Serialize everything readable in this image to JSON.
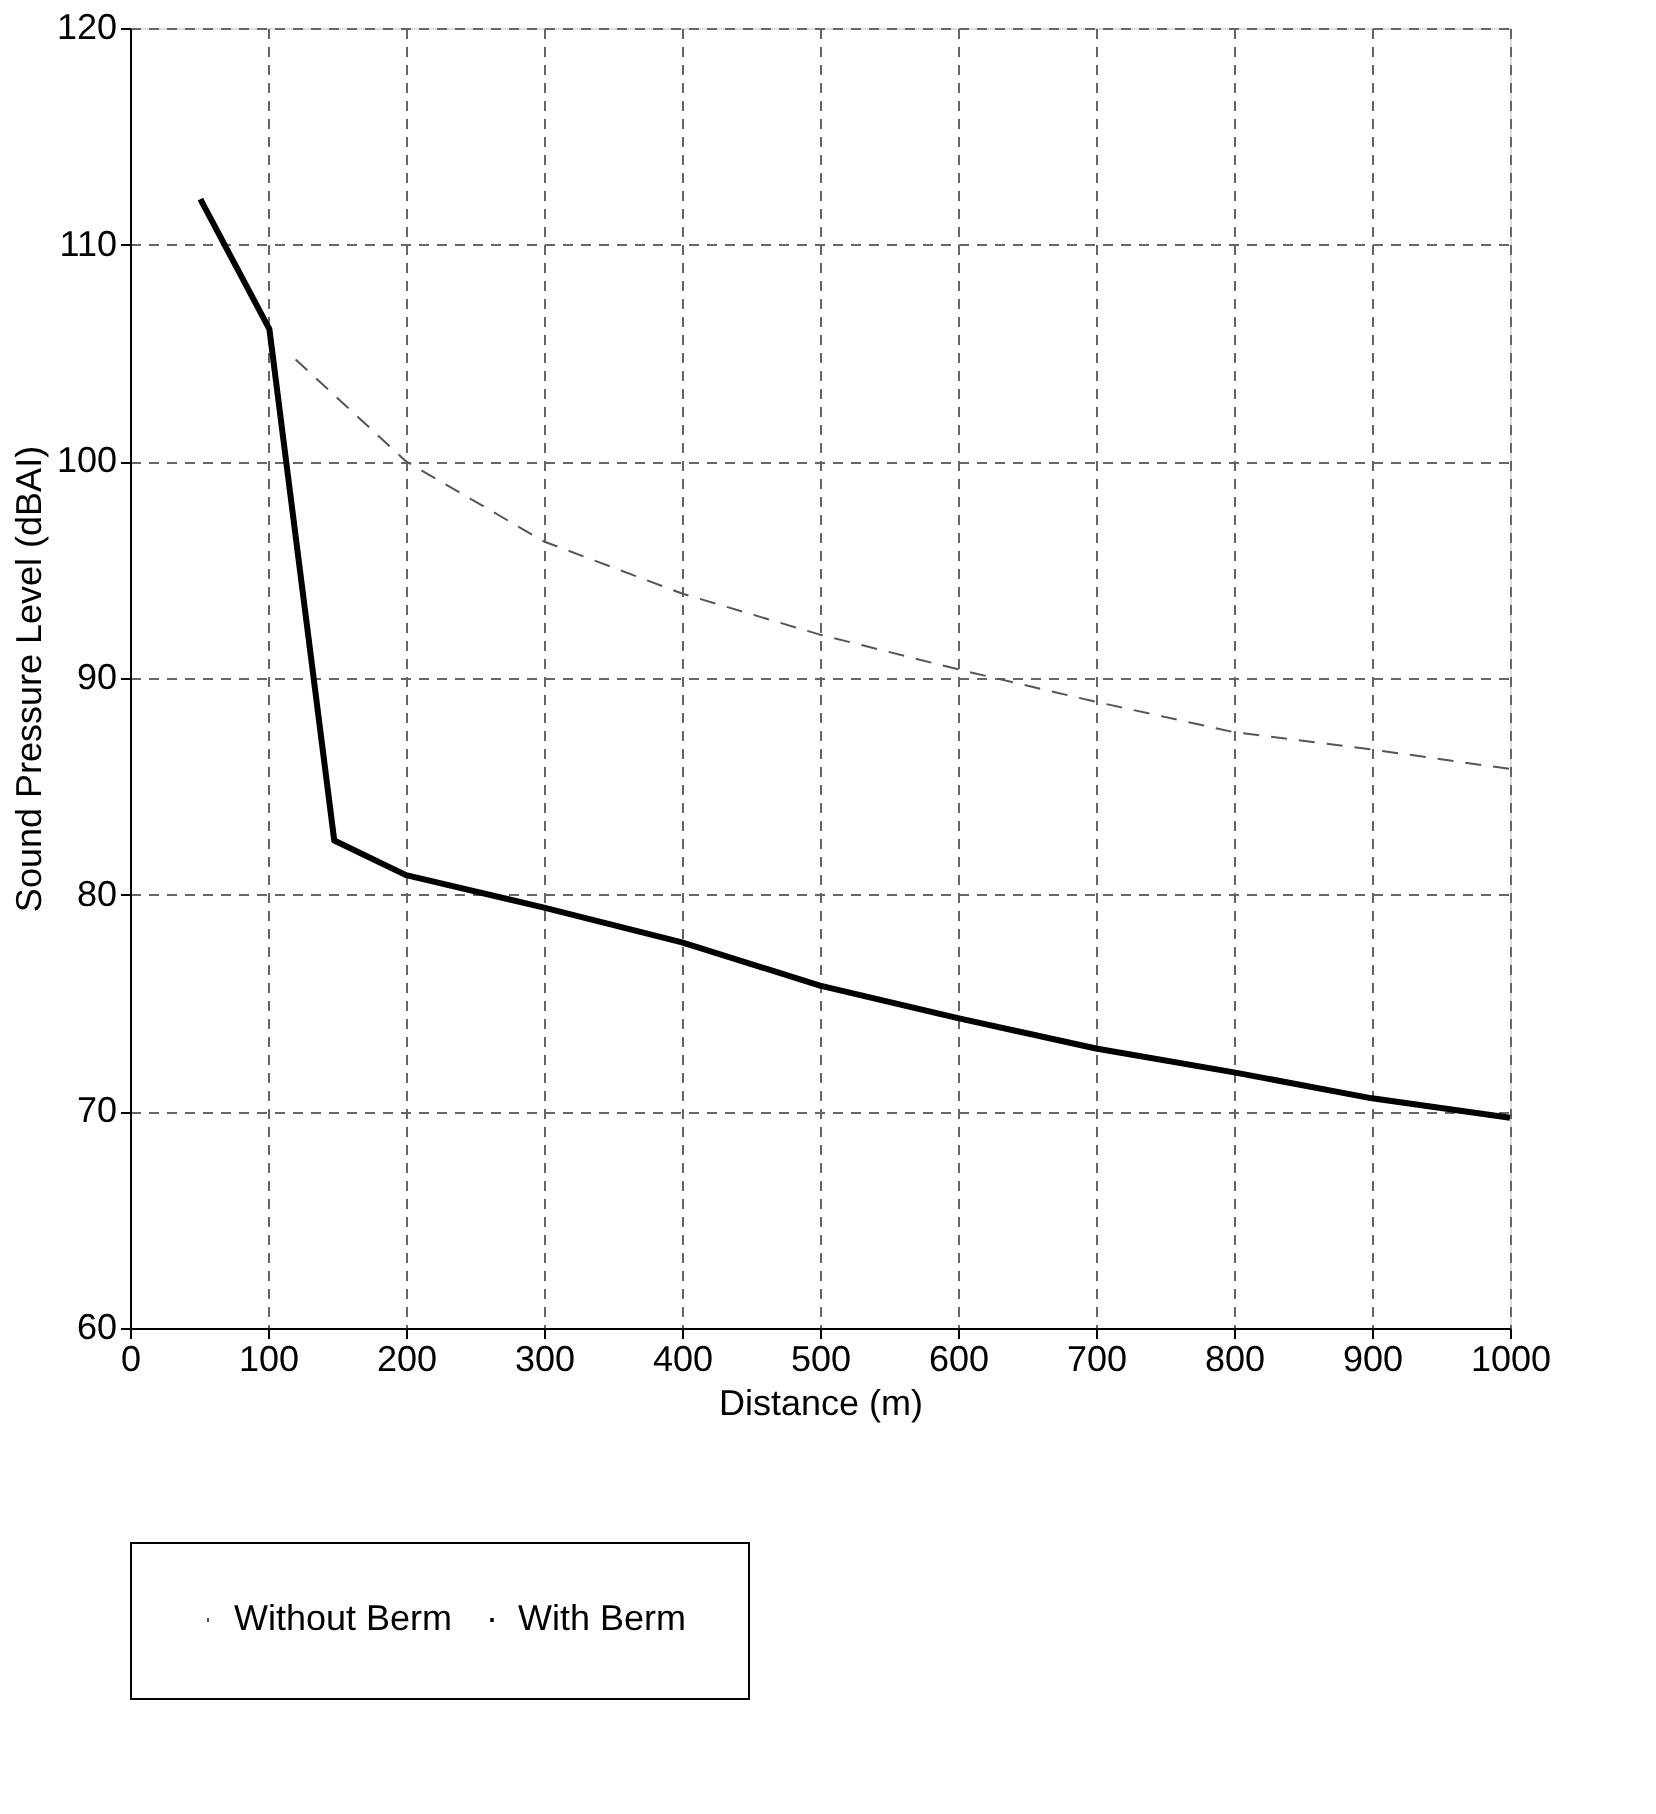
{
  "chart_data": {
    "type": "line",
    "xlabel": "Distance (m)",
    "ylabel": "Sound Pressure Level (dBAI)",
    "xlim": [
      0,
      1000
    ],
    "xticks": [
      0,
      100,
      200,
      300,
      400,
      500,
      600,
      700,
      800,
      900,
      1000
    ],
    "ylim": [
      60,
      120
    ],
    "yticks": [
      60,
      70,
      80,
      90,
      100,
      110,
      120
    ],
    "grid": true,
    "legend": "bottom",
    "marker": "none",
    "series": [
      {
        "name": "Without Berm",
        "color": "#555555",
        "line_style": "dashed",
        "x": [
          120,
          200,
          300,
          400,
          500,
          600,
          700,
          800,
          900,
          1000
        ],
        "values": [
          104.7,
          100,
          96.3,
          93.9,
          92.0,
          90.4,
          88.9,
          87.5,
          86.7,
          85.8
        ]
      },
      {
        "name": "With Berm",
        "color": "#000000",
        "line_style": "solid",
        "x": [
          51,
          101,
          148,
          200,
          300,
          400,
          500,
          600,
          700,
          800,
          900,
          1000
        ],
        "values": [
          112.1,
          106.1,
          82.5,
          80.9,
          79.4,
          77.8,
          75.8,
          74.3,
          72.9,
          71.8,
          70.6,
          69.7
        ]
      }
    ]
  }
}
